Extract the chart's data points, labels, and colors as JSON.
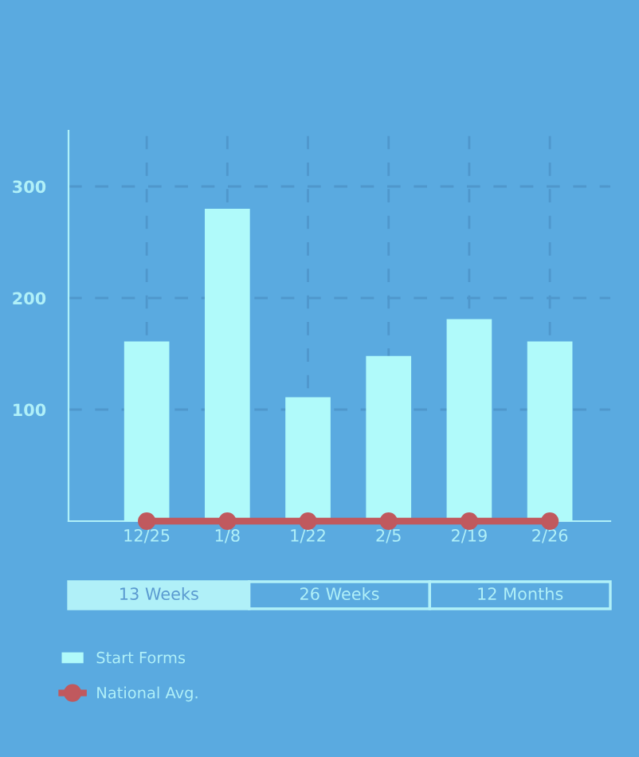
{
  "chart_data": {
    "type": "bar",
    "categories": [
      "12/25",
      "1/8",
      "1/22",
      "2/5",
      "2/19",
      "2/26"
    ],
    "series": [
      {
        "name": "Start Forms",
        "color": "#b0fafa",
        "values": [
          161,
          280,
          111,
          148,
          181,
          161
        ]
      },
      {
        "name": "National Avg.",
        "type": "line",
        "color": "#c0595e",
        "values": [
          0,
          0,
          0,
          0,
          0,
          0
        ],
        "marker": "circle"
      }
    ],
    "ylim": [
      0,
      350
    ],
    "yticks": [
      100,
      200,
      300
    ],
    "grid": true,
    "legend": "bottom left",
    "annotations": [
      "13 Weeks",
      "26 Weeks",
      "12 Months"
    ]
  }
}
